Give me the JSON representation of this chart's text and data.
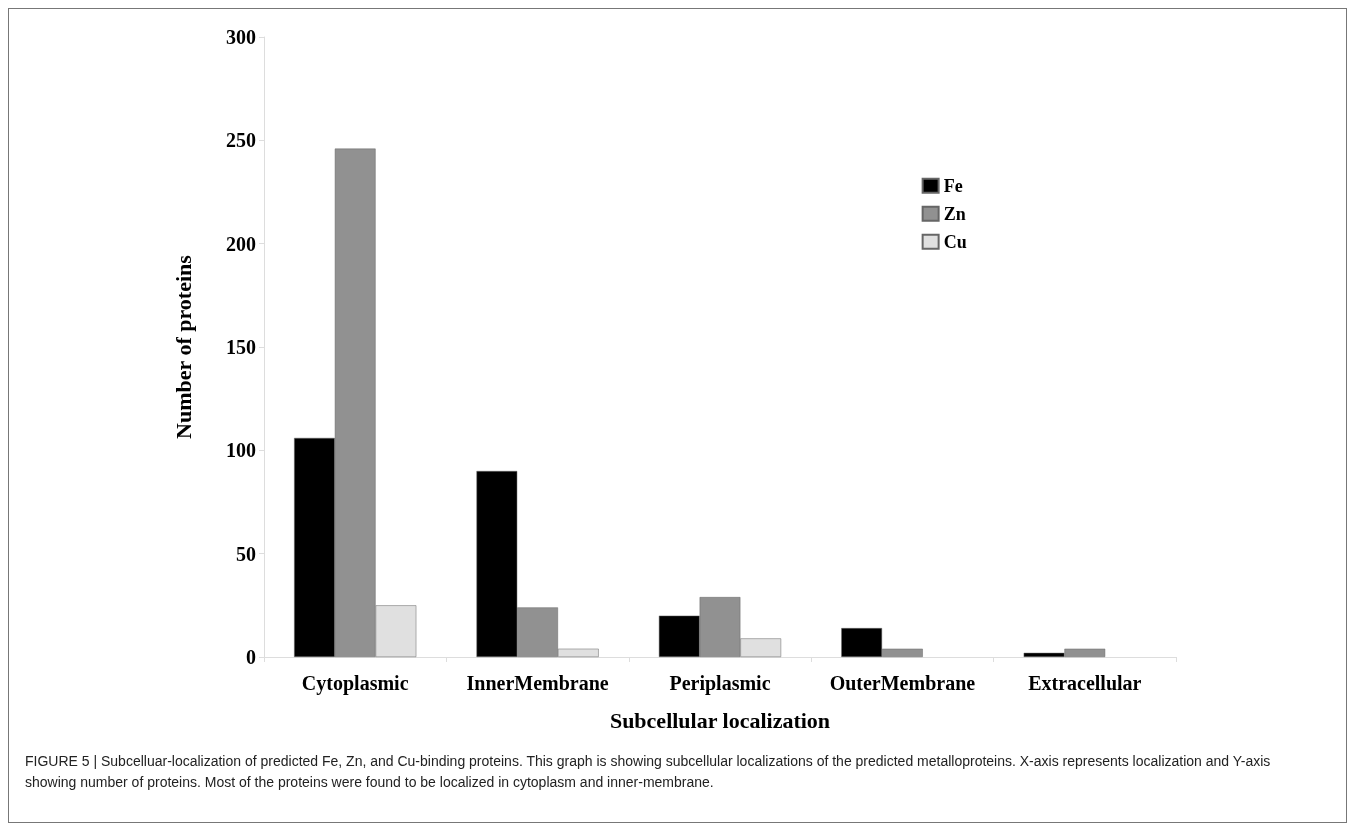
{
  "chart_data": {
    "type": "bar",
    "xlabel": "Subcellular localization",
    "ylabel": "Number of proteins",
    "categories": [
      "Cytoplasmic",
      "InnerMembrane",
      "Periplasmic",
      "OuterMembrane",
      "Extracellular"
    ],
    "series": [
      {
        "name": "Fe",
        "color": "#000000",
        "values": [
          106,
          90,
          20,
          14,
          2
        ]
      },
      {
        "name": "Zn",
        "color": "#919191",
        "values": [
          246,
          24,
          29,
          4,
          4
        ]
      },
      {
        "name": "Cu",
        "color": "#e0e0e0",
        "values": [
          25,
          4,
          9,
          0,
          0
        ]
      }
    ],
    "ylim": [
      0,
      300
    ],
    "yticks": [
      0,
      50,
      100,
      150,
      200,
      250,
      300
    ],
    "grid": false,
    "legend": "top right",
    "annotations": [
      "FIGURE 5 | Subcelluar-localization of predicted Fe, Zn, and Cu-binding proteins. This graph is showing subcellular localizations of the predicted metalloproteins. X-axis represents localization and Y-axis showing number of proteins. Most of the proteins were found to be localized in cytoplasm and inner-membrane."
    ]
  }
}
